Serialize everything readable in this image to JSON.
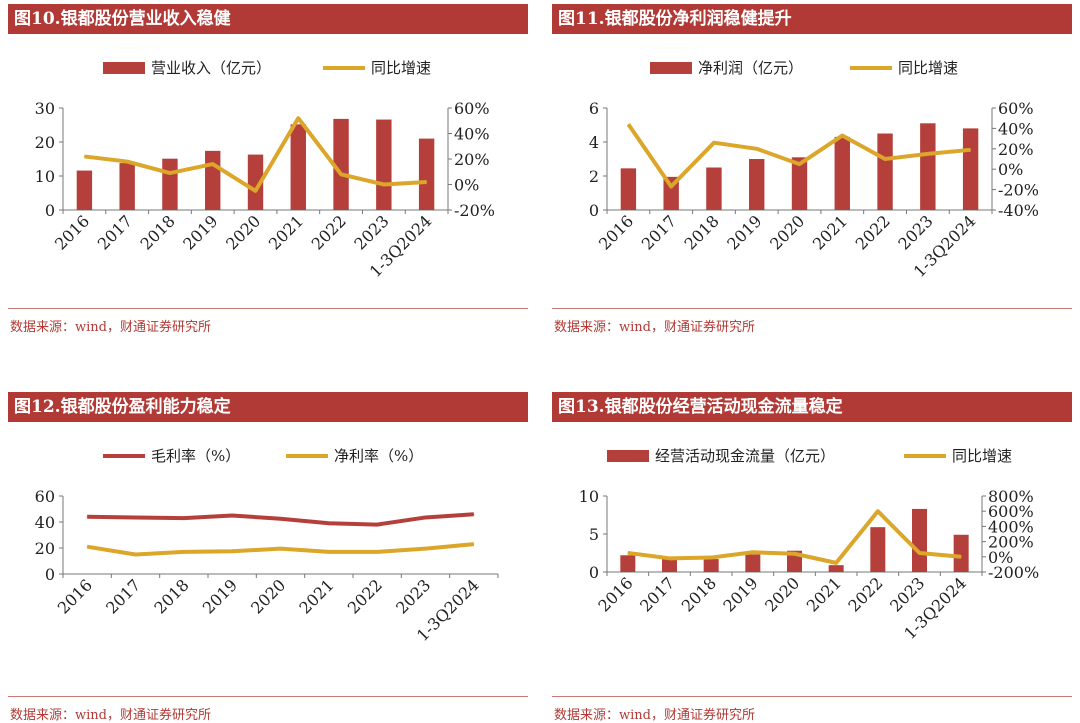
{
  "colors": {
    "bar": "#b5403b",
    "gold": "#dba62a",
    "red_line": "#b5403b",
    "axis": "#777777",
    "title_bg": "#b13a36"
  },
  "panels": [
    {
      "title": "图10.银都股份营业收入稳健",
      "source": "数据来源：wind，财通证券研究所"
    },
    {
      "title": "图11.银都股份净利润稳健提升",
      "source": "数据来源：wind，财通证券研究所"
    },
    {
      "title": "图12.银都股份盈利能力稳定",
      "source": "数据来源：wind，财通证券研究所"
    },
    {
      "title": "图13.银都股份经营活动现金流量稳定",
      "source": "数据来源：wind，财通证券研究所"
    }
  ],
  "chart_data": [
    {
      "type": "bar",
      "categories": [
        "2016",
        "2017",
        "2018",
        "2019",
        "2020",
        "2021",
        "2022",
        "2023",
        "1-3Q2024"
      ],
      "series": [
        {
          "name": "营业收入（亿元）",
          "type": "bar",
          "axis": "left",
          "values": [
            11.6,
            13.8,
            15.1,
            17.4,
            16.3,
            25.2,
            26.8,
            26.6,
            21.0
          ]
        },
        {
          "name": "同比增速",
          "type": "line",
          "axis": "right",
          "values": [
            22,
            18,
            9,
            16,
            -5,
            52,
            8,
            0,
            2
          ]
        }
      ],
      "ylim_left": [
        0,
        30
      ],
      "yticks_left": [
        "0",
        "10",
        "20",
        "30"
      ],
      "ylim_right": [
        -20,
        60
      ],
      "yticks_right": [
        "-20%",
        "0%",
        "20%",
        "40%",
        "60%"
      ],
      "legend": "top-center"
    },
    {
      "type": "bar",
      "categories": [
        "2016",
        "2017",
        "2018",
        "2019",
        "2020",
        "2021",
        "2022",
        "2023",
        "1-3Q2024"
      ],
      "series": [
        {
          "name": "净利润（亿元）",
          "type": "bar",
          "axis": "left",
          "values": [
            2.45,
            1.95,
            2.5,
            3.0,
            3.1,
            4.3,
            4.5,
            5.1,
            4.8
          ]
        },
        {
          "name": "同比增速",
          "type": "line",
          "axis": "right",
          "values": [
            44,
            -17,
            26,
            20,
            5,
            33,
            10,
            15,
            19
          ]
        }
      ],
      "ylim_left": [
        0,
        6
      ],
      "yticks_left": [
        "0",
        "2",
        "4",
        "6"
      ],
      "ylim_right": [
        -40,
        60
      ],
      "yticks_right": [
        "-40%",
        "-20%",
        "0%",
        "20%",
        "40%",
        "60%"
      ],
      "legend": "top-center"
    },
    {
      "type": "line",
      "categories": [
        "2016",
        "2017",
        "2018",
        "2019",
        "2020",
        "2021",
        "2022",
        "2023",
        "1-3Q2024"
      ],
      "series": [
        {
          "name": "毛利率（%）",
          "type": "line",
          "axis": "left",
          "color": "red",
          "values": [
            44,
            43.5,
            43,
            45,
            42.5,
            39,
            38,
            43.5,
            46
          ]
        },
        {
          "name": "净利率（%）",
          "type": "line",
          "axis": "left",
          "color": "gold",
          "values": [
            21,
            15,
            17,
            17.5,
            19.5,
            17,
            17,
            19.5,
            23
          ]
        }
      ],
      "ylim_left": [
        0,
        60
      ],
      "yticks_left": [
        "0",
        "20",
        "40",
        "60"
      ],
      "legend": "top-center"
    },
    {
      "type": "bar",
      "categories": [
        "2016",
        "2017",
        "2018",
        "2019",
        "2020",
        "2021",
        "2022",
        "2023",
        "1-3Q2024"
      ],
      "series": [
        {
          "name": "经营活动现金流量（亿元）",
          "type": "bar",
          "axis": "left",
          "values": [
            2.2,
            1.7,
            1.7,
            2.3,
            2.8,
            0.9,
            5.9,
            8.3,
            4.9
          ]
        },
        {
          "name": "同比增速",
          "type": "line",
          "axis": "right",
          "values": [
            50,
            -20,
            -10,
            60,
            40,
            -80,
            600,
            50,
            0
          ]
        }
      ],
      "ylim_left": [
        0,
        10
      ],
      "yticks_left": [
        "0",
        "5",
        "10"
      ],
      "ylim_right": [
        -200,
        800
      ],
      "yticks_right": [
        "-200%",
        "0%",
        "200%",
        "400%",
        "600%",
        "800%"
      ],
      "legend": "top-center"
    }
  ]
}
